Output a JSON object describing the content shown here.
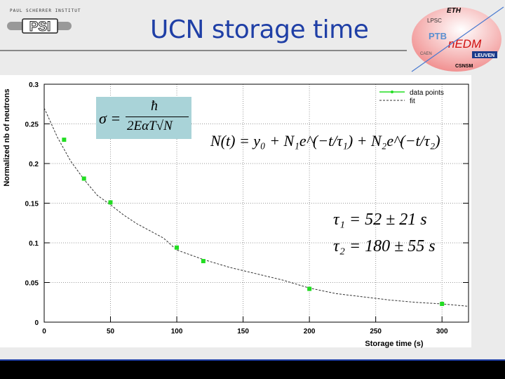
{
  "header": {
    "title": "UCN storage time",
    "logo_caption": "PAUL SCHERRER INSTITUT",
    "logo_text": "PSI",
    "collaboration_logos": [
      "ETH",
      "LPSC",
      "PTB",
      "nEDM",
      "LEUVEN",
      "CSNSM",
      "CAEN"
    ]
  },
  "colors": {
    "title": "#1f3fa6",
    "data_points": "#22dd22",
    "fit": "#333333",
    "formula_box": "#a9d3d8"
  },
  "formulas": {
    "sigma_lhs": "σ =",
    "sigma_num": "ħ",
    "sigma_den": "2EαT√N",
    "fit_equation": "N(t) = y₀ + N₁e^(−t/τ₁) + N₂e^(−t/τ₂)",
    "tau1": "τ₁ = 52 ± 21 s",
    "tau2": "τ₂ = 180 ± 55 s"
  },
  "chart_data": {
    "type": "scatter",
    "xlabel": "Storage time (s)",
    "ylabel": "Normalized nb of neutrons",
    "xlim": [
      0,
      320
    ],
    "ylim": [
      0,
      0.3
    ],
    "xticks": [
      0,
      50,
      100,
      150,
      200,
      250,
      300
    ],
    "yticks": [
      0,
      0.05,
      0.1,
      0.15,
      0.2,
      0.25,
      0.3
    ],
    "grid": true,
    "legend_position": "top-right",
    "series": [
      {
        "name": "data points",
        "x": [
          15,
          30,
          50,
          100,
          120,
          200,
          300
        ],
        "y": [
          0.23,
          0.181,
          0.151,
          0.094,
          0.077,
          0.042,
          0.023
        ]
      },
      {
        "name": "fit",
        "style": "dashed",
        "x": [
          0,
          10,
          20,
          30,
          40,
          50,
          60,
          70,
          80,
          90,
          100,
          120,
          140,
          160,
          180,
          200,
          220,
          240,
          260,
          280,
          300,
          320
        ],
        "y": [
          0.27,
          0.233,
          0.203,
          0.18,
          0.16,
          0.148,
          0.135,
          0.124,
          0.115,
          0.106,
          0.091,
          0.079,
          0.069,
          0.061,
          0.053,
          0.043,
          0.036,
          0.032,
          0.028,
          0.025,
          0.023,
          0.02
        ]
      }
    ]
  }
}
